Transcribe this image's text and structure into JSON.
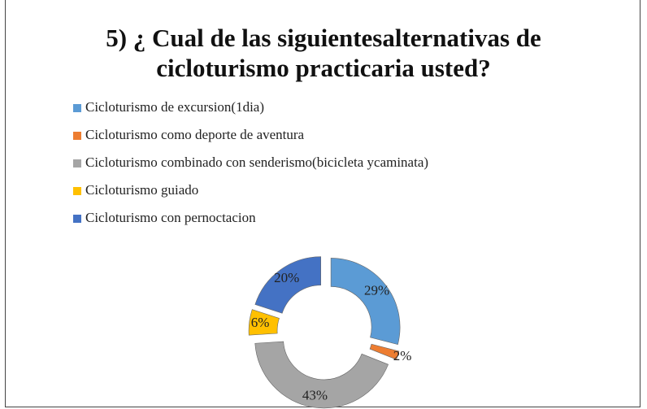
{
  "chart_data": {
    "type": "donut",
    "title": "5) ¿ Cual de las siguientesalternativas de cicloturismo practicaria usted?",
    "categories": [
      "Cicloturismo de excursion(1dia)",
      "Cicloturismo como deporte de aventura",
      "Cicloturismo combinado con senderismo(bicicleta ycaminata)",
      "Cicloturismo guiado",
      "Cicloturismo con pernoctacion"
    ],
    "values": [
      29,
      2,
      43,
      6,
      20
    ],
    "value_labels": [
      "29%",
      "2%",
      "43%",
      "6%",
      "20%"
    ],
    "colors": [
      "#5b9bd5",
      "#ed7d31",
      "#a5a5a5",
      "#ffc000",
      "#4472c4"
    ],
    "legend": "top"
  }
}
